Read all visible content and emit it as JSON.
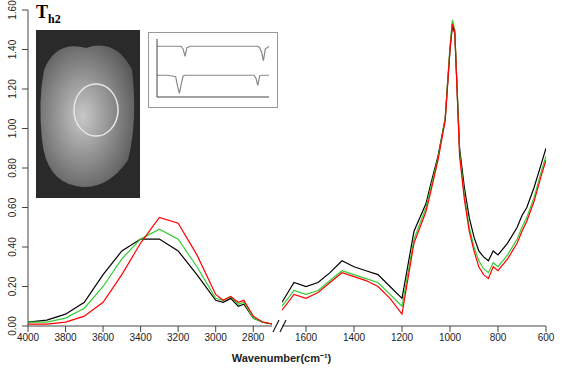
{
  "chart_data": [
    {
      "type": "line",
      "title": "Th2",
      "xlabel": "Wavenumber(cm⁻¹)",
      "x": [
        4000,
        3900,
        3800,
        3700,
        3600,
        3500,
        3400,
        3300,
        3200,
        3100,
        3000,
        2960,
        2920,
        2880,
        2850,
        2800,
        2750,
        2700
      ],
      "xlim": [
        4000,
        2700
      ],
      "xticks": [
        4000,
        3800,
        3600,
        3400,
        3200,
        3000,
        2800
      ],
      "ylim": [
        0,
        1.6
      ],
      "yticks": [
        {
          "value": 0,
          "label": "0.00"
        },
        {
          "value": 0.2,
          "label": "0.20"
        },
        {
          "value": 0.4,
          "label": "0.40"
        },
        {
          "value": 0.6,
          "label": "0.60"
        },
        {
          "value": 0.8,
          "label": "0.80"
        },
        {
          "value": 1,
          "label": "1.00"
        },
        {
          "value": 1.2,
          "label": "1.20"
        },
        {
          "value": 1.4,
          "label": "1.40"
        },
        {
          "value": 1.6,
          "label": "1.60"
        }
      ],
      "tick_labels": true,
      "grid": false,
      "series": [
        {
          "color": "#000000",
          "values": [
            0.02,
            0.03,
            0.06,
            0.12,
            0.26,
            0.38,
            0.44,
            0.44,
            0.38,
            0.26,
            0.13,
            0.12,
            0.14,
            0.1,
            0.11,
            0.04,
            0.02,
            0.01
          ]
        },
        {
          "color": "#33cc33",
          "values": [
            0.02,
            0.02,
            0.04,
            0.09,
            0.2,
            0.34,
            0.44,
            0.49,
            0.44,
            0.3,
            0.14,
            0.13,
            0.15,
            0.11,
            0.12,
            0.04,
            0.02,
            0.01
          ]
        },
        {
          "color": "#ff0000",
          "values": [
            0.01,
            0.01,
            0.02,
            0.05,
            0.12,
            0.26,
            0.42,
            0.55,
            0.52,
            0.36,
            0.16,
            0.13,
            0.15,
            0.12,
            0.13,
            0.05,
            0.02,
            0.01
          ]
        }
      ]
    },
    {
      "type": "line",
      "x": [
        1700,
        1650,
        1600,
        1550,
        1500,
        1450,
        1400,
        1350,
        1300,
        1250,
        1200,
        1150,
        1100,
        1080,
        1050,
        1020,
        1000,
        990,
        980,
        960,
        940,
        920,
        900,
        880,
        860,
        840,
        820,
        800,
        760,
        720,
        700,
        680,
        650,
        620,
        600
      ],
      "xlim": [
        1700,
        600
      ],
      "xticks": [
        1600,
        1400,
        1200,
        1000,
        800,
        600
      ],
      "ylim": [
        0,
        1.6
      ],
      "tick_labels": "x",
      "grid": false,
      "series": [
        {
          "color": "#000000",
          "values": [
            0.12,
            0.22,
            0.2,
            0.22,
            0.27,
            0.33,
            0.3,
            0.28,
            0.26,
            0.2,
            0.14,
            0.48,
            0.62,
            0.72,
            0.86,
            1.05,
            1.4,
            1.52,
            1.48,
            0.9,
            0.7,
            0.55,
            0.45,
            0.38,
            0.35,
            0.33,
            0.38,
            0.36,
            0.42,
            0.5,
            0.56,
            0.6,
            0.7,
            0.82,
            0.9
          ]
        },
        {
          "color": "#33cc33",
          "values": [
            0.1,
            0.18,
            0.16,
            0.18,
            0.23,
            0.28,
            0.26,
            0.24,
            0.22,
            0.16,
            0.1,
            0.44,
            0.6,
            0.7,
            0.85,
            1.05,
            1.42,
            1.55,
            1.5,
            0.88,
            0.66,
            0.5,
            0.4,
            0.33,
            0.29,
            0.27,
            0.32,
            0.3,
            0.36,
            0.44,
            0.5,
            0.55,
            0.65,
            0.78,
            0.86
          ]
        },
        {
          "color": "#ff0000",
          "values": [
            0.08,
            0.16,
            0.14,
            0.17,
            0.22,
            0.27,
            0.25,
            0.23,
            0.2,
            0.14,
            0.06,
            0.42,
            0.58,
            0.68,
            0.84,
            1.04,
            1.4,
            1.53,
            1.49,
            0.86,
            0.64,
            0.48,
            0.38,
            0.3,
            0.26,
            0.24,
            0.3,
            0.28,
            0.34,
            0.42,
            0.48,
            0.53,
            0.63,
            0.76,
            0.84
          ]
        }
      ]
    },
    {
      "type": "line",
      "x": [
        0,
        30,
        50,
        55,
        60,
        65,
        70,
        75,
        80,
        90,
        120,
        200,
        260,
        265,
        270,
        275,
        280,
        285,
        290,
        300
      ],
      "xlim": [
        0,
        300
      ],
      "ylim": [
        0,
        8
      ],
      "tick_labels": false,
      "grid": false,
      "series": [
        {
          "color": "#888888",
          "values": [
            7,
            7,
            7,
            7,
            7,
            7,
            6.6,
            5.6,
            6.8,
            7,
            7,
            7,
            7,
            7,
            7,
            6.8,
            6.2,
            5.0,
            6.6,
            7
          ]
        },
        {
          "color": "#888888",
          "values": [
            3,
            3,
            2.8,
            1.5,
            0.5,
            1.8,
            2.9,
            3,
            3,
            3,
            3,
            3,
            3,
            2.6,
            1.6,
            2.9,
            3,
            3,
            3,
            3
          ]
        }
      ]
    }
  ]
}
